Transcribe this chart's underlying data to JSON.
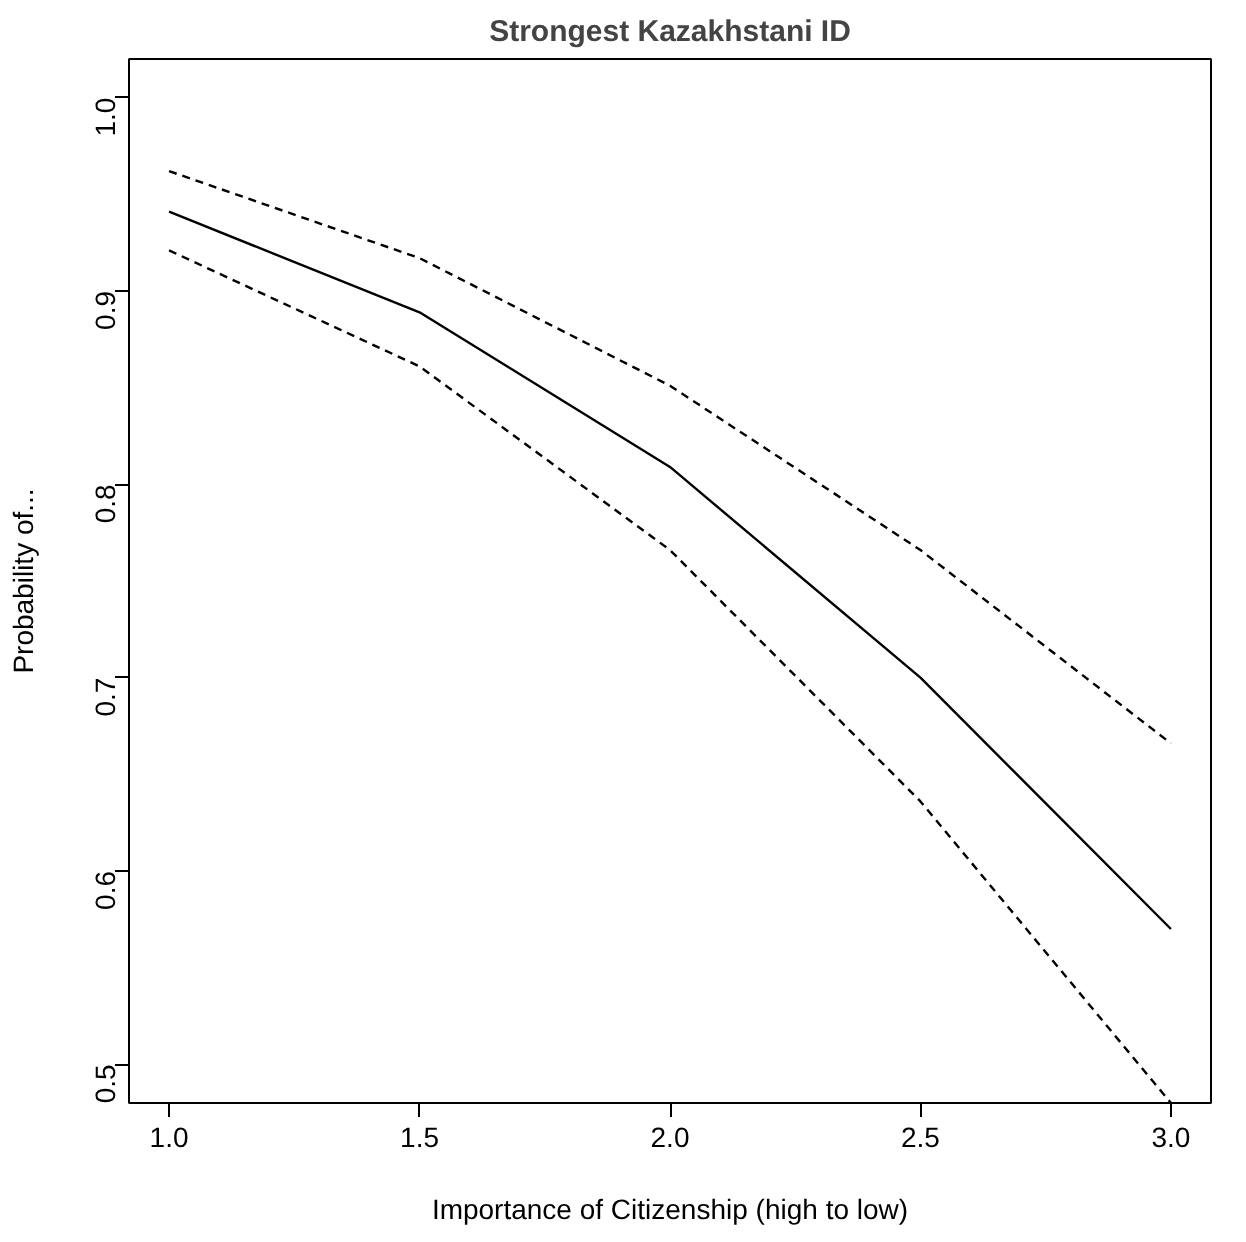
{
  "chart_data": {
    "type": "line",
    "title": "Strongest Kazakhstani ID",
    "xlabel": "Importance of Citizenship (high to low)",
    "ylabel": "Probability of...",
    "x": [
      1.0,
      1.5,
      2.0,
      2.5,
      3.0
    ],
    "series": [
      {
        "color": "#000000",
        "line_style": "solid",
        "values": [
          0.941,
          0.889,
          0.809,
          0.7,
          0.57
        ]
      },
      {
        "color": "#000000",
        "line_style": "dashed",
        "values": [
          0.962,
          0.917,
          0.851,
          0.766,
          0.666
        ]
      },
      {
        "color": "#000000",
        "line_style": "dashed",
        "values": [
          0.921,
          0.861,
          0.766,
          0.636,
          0.48
        ]
      }
    ],
    "xlim": [
      0.92,
      3.08
    ],
    "ylim": [
      0.48,
      1.02
    ],
    "xticks": [
      {
        "value": 1.0,
        "label": "1.0"
      },
      {
        "value": 1.5,
        "label": "1.5"
      },
      {
        "value": 2.0,
        "label": "2.0"
      },
      {
        "value": 2.5,
        "label": "2.5"
      },
      {
        "value": 3.0,
        "label": "3.0"
      }
    ],
    "yticks": [
      {
        "value": 0.5,
        "label": "0.5"
      },
      {
        "value": 0.6,
        "label": "0.6"
      },
      {
        "value": 0.7,
        "label": "0.7"
      },
      {
        "value": 0.8,
        "label": "0.8"
      },
      {
        "value": 0.9,
        "label": "0.9"
      },
      {
        "value": 1.0,
        "label": "1.0"
      }
    ],
    "grid": false
  }
}
